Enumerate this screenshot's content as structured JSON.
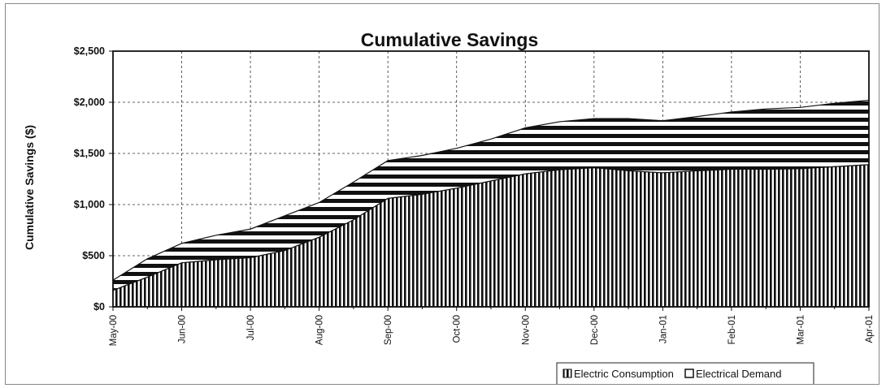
{
  "chart_data": {
    "type": "area",
    "stacked": true,
    "title": "Cumulative Savings",
    "xlabel": "",
    "ylabel": "Cumulative Savings ($)",
    "ylim": [
      0,
      2500
    ],
    "yticks": [
      0,
      500,
      1000,
      1500,
      2000,
      2500
    ],
    "ytick_labels": [
      "$0",
      "$500",
      "$1,000",
      "$1,500",
      "$2,000",
      "$2,500"
    ],
    "grid": true,
    "legend_position": "bottom-right",
    "x": [
      "May-00",
      "",
      "Jun-00",
      "",
      "Jul-00",
      "",
      "Aug-00",
      "",
      "Sep-00",
      "",
      "Oct-00",
      "",
      "Nov-00",
      "",
      "Dec-00",
      "",
      "Jan-01",
      "",
      "Feb-01",
      "",
      "Mar-01",
      "",
      "Apr-01"
    ],
    "x_tick_labels": [
      "May-00",
      "Jun-00",
      "Jul-00",
      "Aug-00",
      "Sep-00",
      "Oct-00",
      "Nov-00",
      "Dec-00",
      "Jan-01",
      "Feb-01",
      "Mar-01",
      "Apr-01"
    ],
    "series": [
      {
        "name": "Electric Consumption",
        "pattern": "vertical-stripes",
        "values": [
          160,
          290,
          430,
          460,
          480,
          550,
          680,
          850,
          1060,
          1100,
          1160,
          1230,
          1300,
          1340,
          1360,
          1330,
          1310,
          1330,
          1345,
          1345,
          1350,
          1370,
          1390
        ]
      },
      {
        "name": "Electrical Demand",
        "pattern": "horizontal-stripes",
        "values": [
          100,
          180,
          190,
          240,
          280,
          340,
          340,
          370,
          370,
          380,
          390,
          410,
          450,
          470,
          480,
          510,
          510,
          530,
          560,
          590,
          600,
          620,
          630
        ]
      }
    ]
  }
}
